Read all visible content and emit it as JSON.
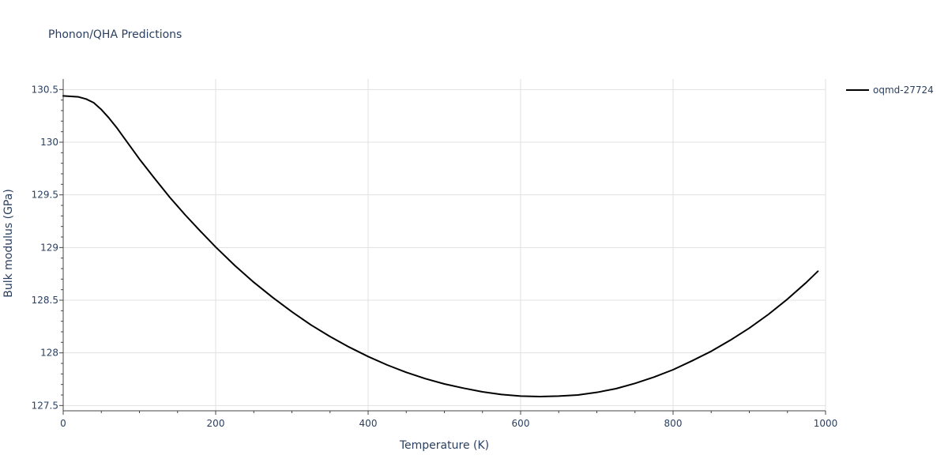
{
  "title": "Phonon/QHA Predictions",
  "chart_data": {
    "type": "line",
    "title": "Phonon/QHA Predictions",
    "xlabel": "Temperature (K)",
    "ylabel": "Bulk modulus (GPa)",
    "xlim": [
      0,
      1000
    ],
    "ylim": [
      127.45,
      130.6
    ],
    "xticks": [
      0,
      200,
      400,
      600,
      800,
      1000
    ],
    "xtick_labels": [
      "0",
      "200",
      "400",
      "600",
      "800",
      "1000"
    ],
    "yticks": [
      127.5,
      128,
      128.5,
      129,
      129.5,
      130,
      130.5
    ],
    "ytick_labels": [
      "127.5",
      "128",
      "128.5",
      "129",
      "129.5",
      "130",
      "130.5"
    ],
    "grid": true,
    "legend_position": "top-right",
    "colors": {
      "line": "#000000",
      "grid": "#e1e1e1",
      "text": "#2a3f5f"
    },
    "series": [
      {
        "name": "oqmd-27724",
        "x": [
          0,
          10,
          20,
          30,
          40,
          50,
          60,
          70,
          80,
          100,
          120,
          140,
          160,
          180,
          200,
          225,
          250,
          275,
          300,
          325,
          350,
          375,
          400,
          425,
          450,
          475,
          500,
          525,
          550,
          575,
          600,
          625,
          650,
          675,
          700,
          725,
          750,
          775,
          800,
          825,
          850,
          875,
          900,
          925,
          950,
          975,
          990
        ],
        "y": [
          130.44,
          130.435,
          130.43,
          130.41,
          130.375,
          130.31,
          130.23,
          130.14,
          130.04,
          129.84,
          129.655,
          129.475,
          129.31,
          129.155,
          129.005,
          128.83,
          128.67,
          128.525,
          128.39,
          128.265,
          128.155,
          128.055,
          127.965,
          127.885,
          127.815,
          127.755,
          127.705,
          127.665,
          127.63,
          127.605,
          127.59,
          127.585,
          127.59,
          127.6,
          127.625,
          127.66,
          127.71,
          127.77,
          127.84,
          127.925,
          128.015,
          128.12,
          128.235,
          128.365,
          128.51,
          128.67,
          128.775
        ]
      }
    ]
  }
}
